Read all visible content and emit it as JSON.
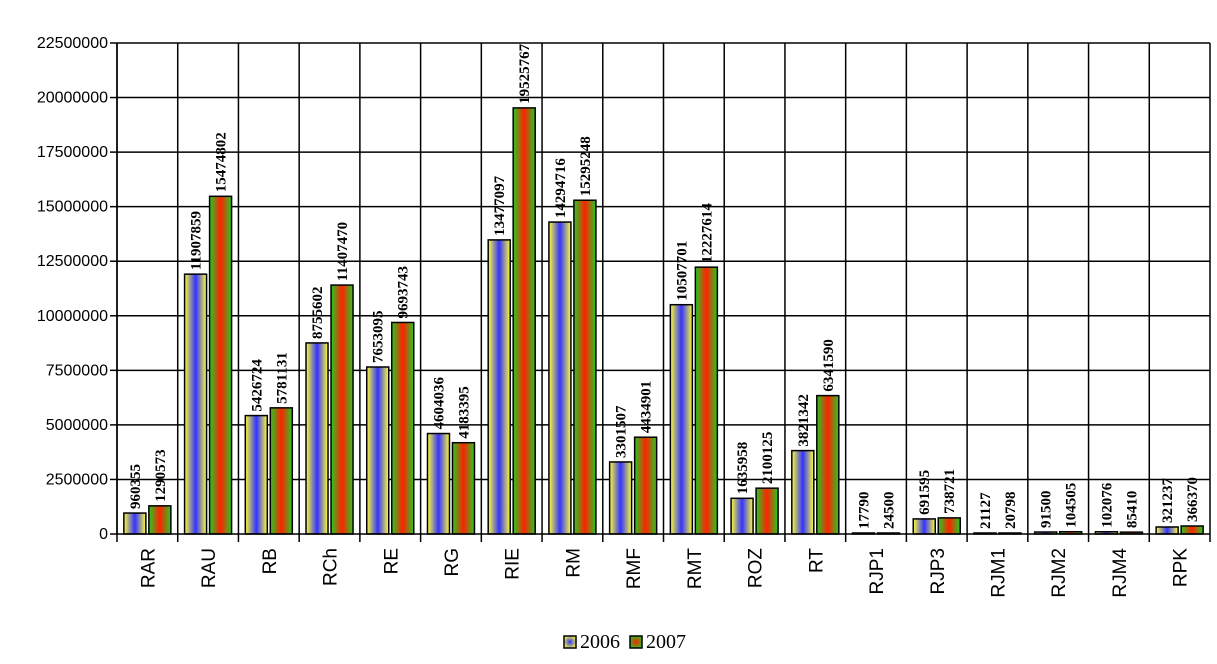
{
  "chart_data": {
    "type": "bar",
    "categories": [
      "RAR",
      "RAU",
      "RB",
      "RCh",
      "RE",
      "RG",
      "RIE",
      "RM",
      "RMF",
      "RMT",
      "ROZ",
      "RT",
      "RJP1",
      "RJP3",
      "RJM1",
      "RJM2",
      "RJM4",
      "RPK"
    ],
    "series": [
      {
        "name": "2006",
        "values": [
          960355,
          11907859,
          5426724,
          8755602,
          7653095,
          4604036,
          13477097,
          14294716,
          3301507,
          10507701,
          1635958,
          3821342,
          17790,
          691595,
          21127,
          91500,
          102076,
          321237
        ]
      },
      {
        "name": "2007",
        "values": [
          1290573,
          15474802,
          5781131,
          11407470,
          9693743,
          4183395,
          19525767,
          15295248,
          4434901,
          12227614,
          2100125,
          6341590,
          24500,
          738721,
          20798,
          104505,
          85410,
          366370
        ]
      }
    ],
    "ylim": [
      0,
      22500000
    ],
    "yticks": [
      0,
      2500000,
      5000000,
      7500000,
      10000000,
      12500000,
      15000000,
      17500000,
      20000000,
      22500000
    ],
    "grid": true,
    "legend": "bottom-center",
    "colors": {
      "2006": "#ffff33",
      "2006_center": "#3333ff",
      "2007": "#22cc22",
      "2007_center": "#ff2200"
    }
  }
}
